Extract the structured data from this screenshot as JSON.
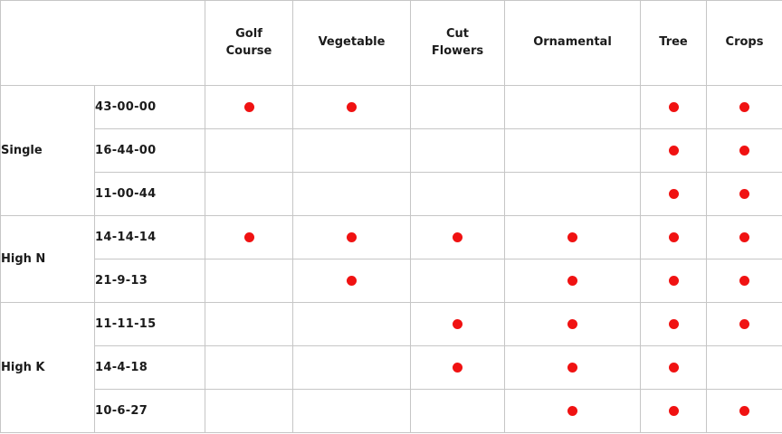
{
  "table": {
    "corner_label": "",
    "columns": [
      "Golf\nCourse",
      "Vegetable",
      "Cut\nFlowers",
      "Ornamental",
      "Tree",
      "Crops"
    ],
    "groups": [
      {
        "label": "Single",
        "rows": [
          {
            "formula": "43-00-00",
            "marks": [
              1,
              1,
              0,
              0,
              1,
              1
            ]
          },
          {
            "formula": "16-44-00",
            "marks": [
              0,
              0,
              0,
              0,
              1,
              1
            ]
          },
          {
            "formula": "11-00-44",
            "marks": [
              0,
              0,
              0,
              0,
              1,
              1
            ]
          }
        ]
      },
      {
        "label": "High N",
        "rows": [
          {
            "formula": "14-14-14",
            "marks": [
              1,
              1,
              1,
              1,
              1,
              1
            ]
          },
          {
            "formula": "21-9-13",
            "marks": [
              0,
              1,
              0,
              1,
              1,
              1
            ]
          }
        ]
      },
      {
        "label": "High K",
        "rows": [
          {
            "formula": "11-11-15",
            "marks": [
              0,
              0,
              1,
              1,
              1,
              1
            ]
          },
          {
            "formula": "14-4-18",
            "marks": [
              0,
              0,
              1,
              1,
              1,
              0
            ]
          },
          {
            "formula": "10-6-27",
            "marks": [
              0,
              0,
              0,
              1,
              1,
              1
            ]
          }
        ]
      }
    ],
    "colors": {
      "dot": "#f01212",
      "border": "#c6c6c6",
      "text": "#1b1b1b",
      "background": "#ffffff"
    },
    "mark_icon": "red-dot"
  }
}
